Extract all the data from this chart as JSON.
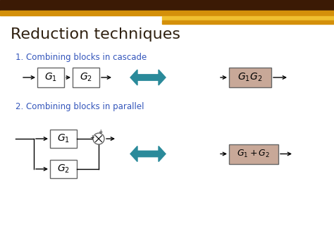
{
  "title": "Reduction techniques",
  "title_color": "#2F2010",
  "subtitle1": "1. Combining blocks in cascade",
  "subtitle2": "2. Combining blocks in parallel",
  "subtitle_color": "#3355BB",
  "bg_color": "#FFFFFF",
  "header_bar_dark": "#3B1A05",
  "header_bar_gold": "#D4900A",
  "header_bar_light": "#F0C030",
  "box_fill_cascade": "#FFFFFF",
  "box_fill_result": "#C8A898",
  "box_stroke": "#666666",
  "arrow_color": "#2A8A9A",
  "line_color": "#000000",
  "text_color_math": "#000000"
}
